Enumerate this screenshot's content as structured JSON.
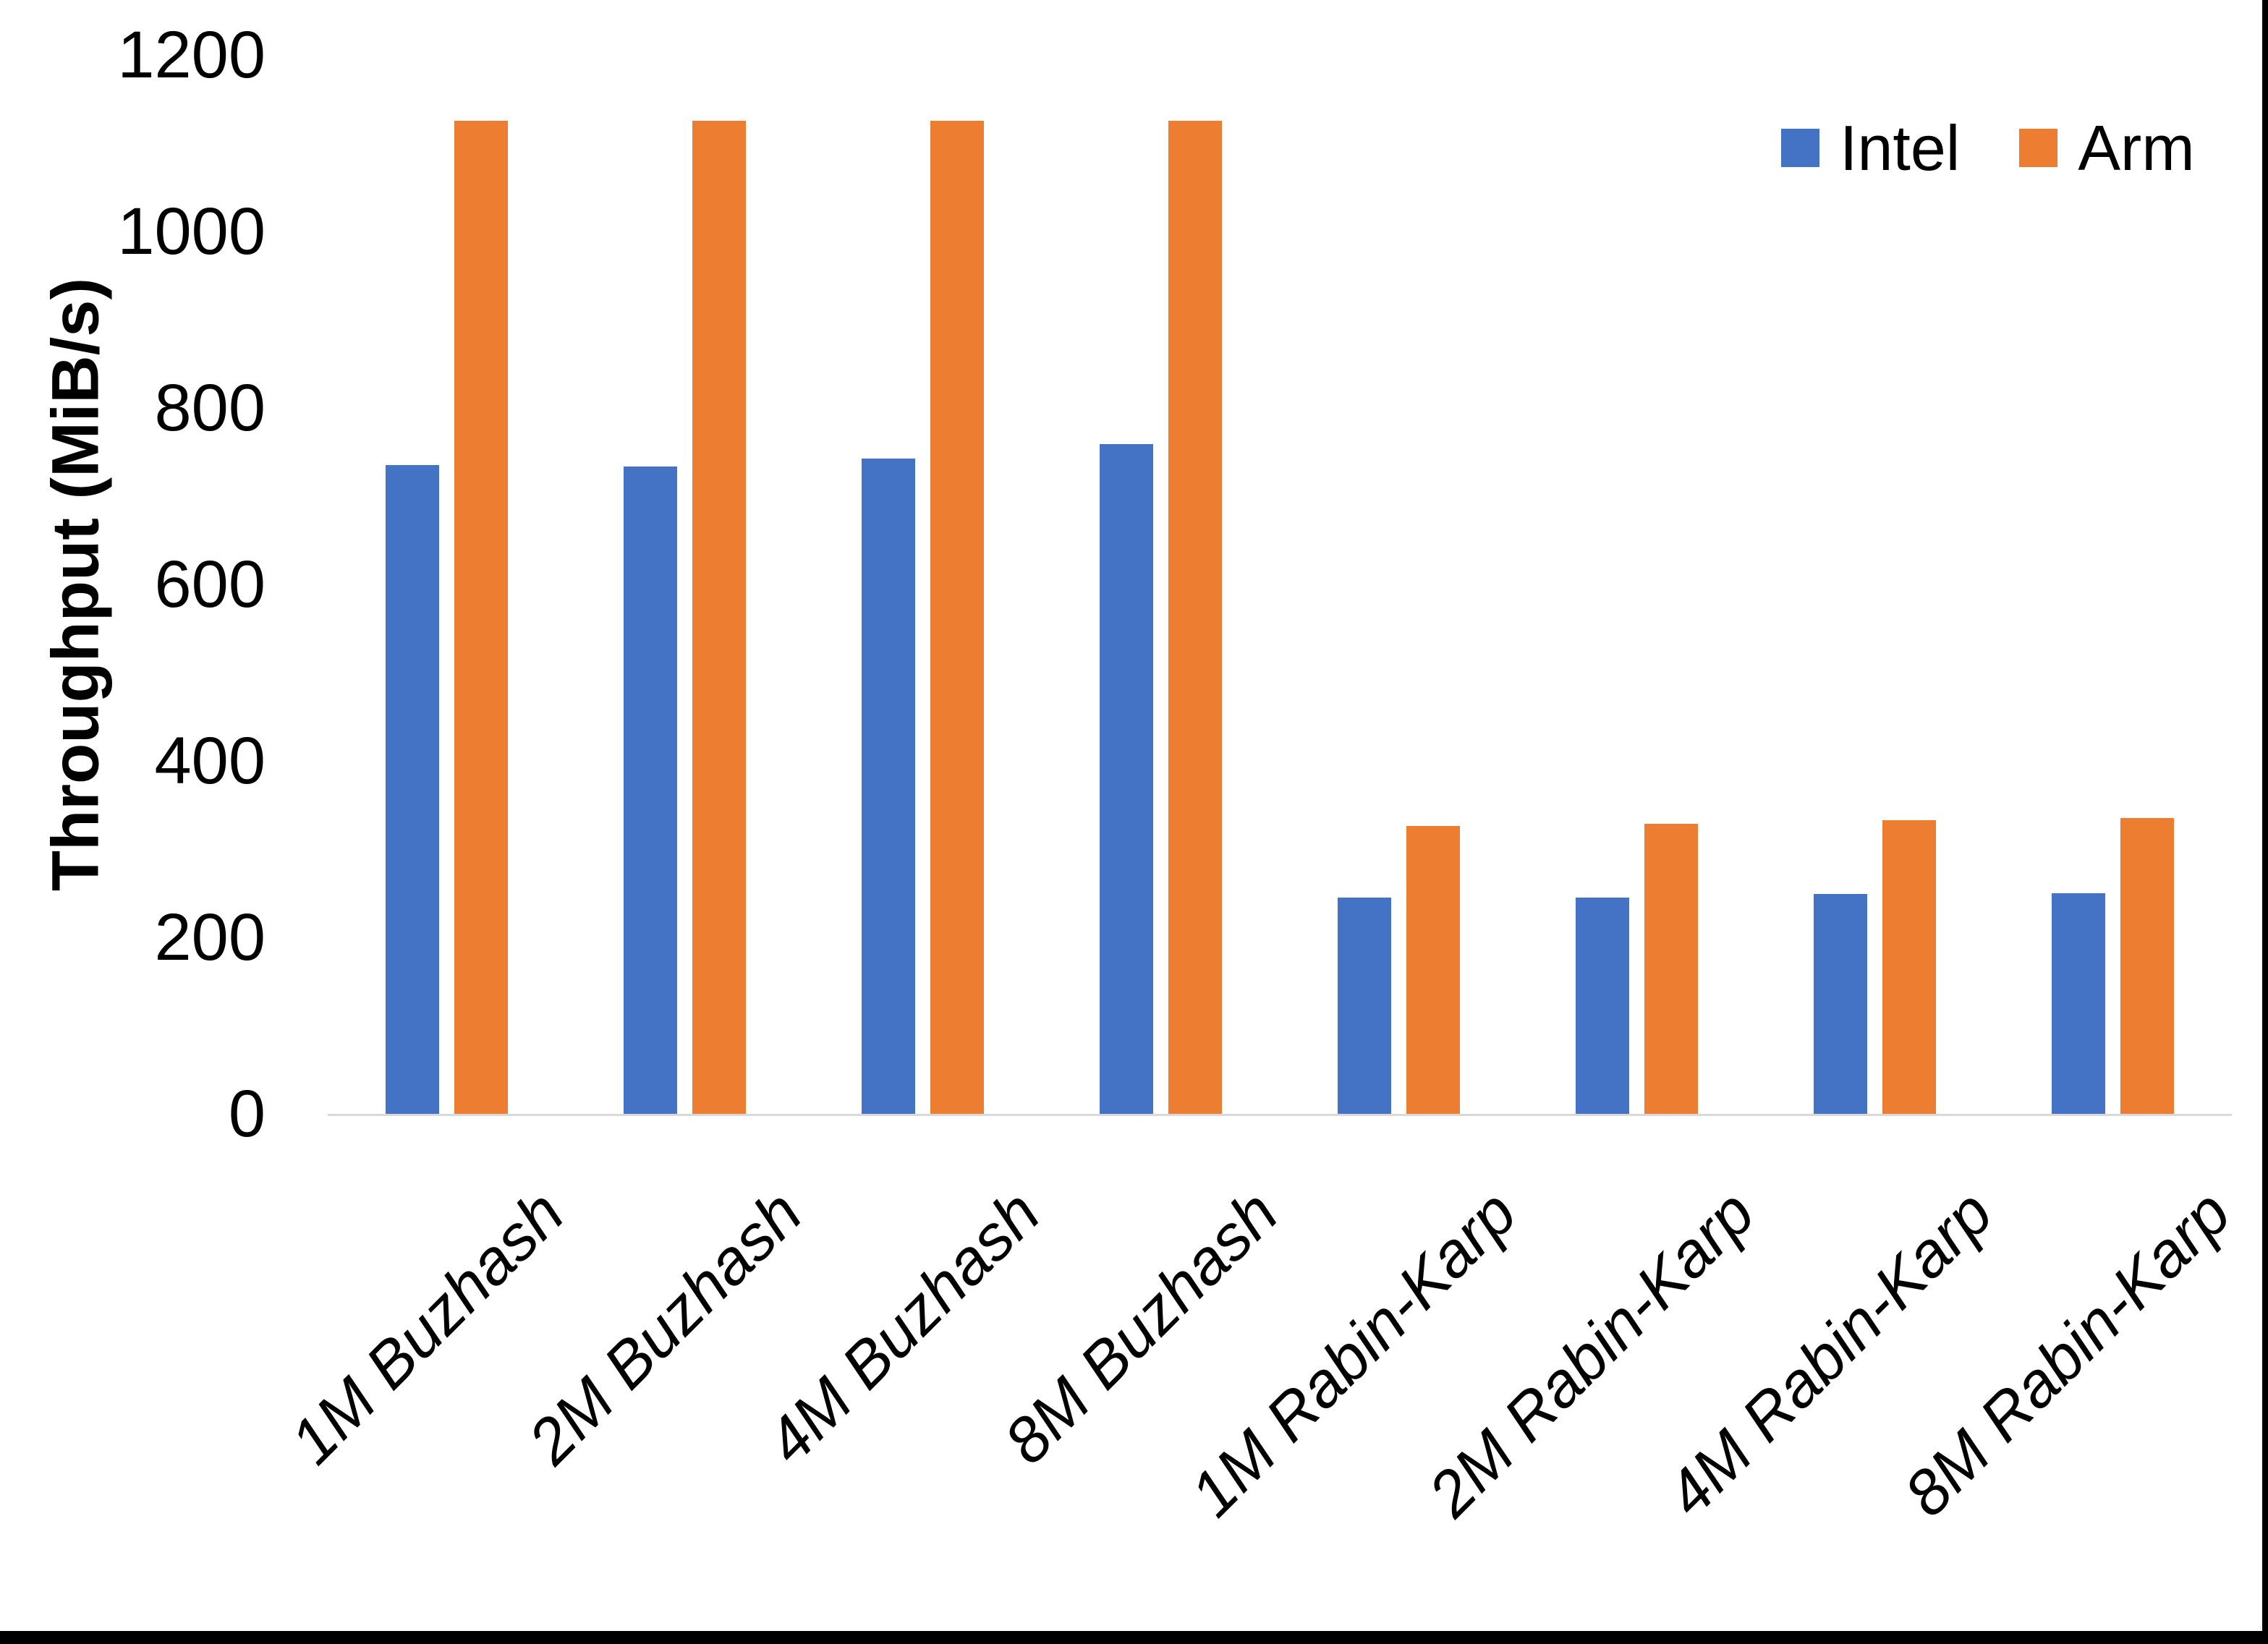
{
  "chart_data": {
    "type": "bar",
    "title": "",
    "categories": [
      "1M Buzhash",
      "2M Buzhash",
      "4M Buzhash",
      "8M Buzhash",
      "1M Rabin-Karp",
      "2M Rabin-Karp",
      "4M Rabin-Karp",
      "8M Rabin-Karp"
    ],
    "series": [
      {
        "name": "Intel",
        "color": "#4472C4",
        "values": [
          735,
          734,
          743,
          759,
          245,
          245,
          249,
          250
        ]
      },
      {
        "name": "Arm",
        "color": "#ED7D31",
        "values": [
          1125,
          1125,
          1125,
          1125,
          326,
          329,
          333,
          335
        ]
      }
    ],
    "xlabel": "",
    "ylabel": "Throughput (MiB/s)",
    "ylim": [
      0,
      1200
    ],
    "yticks": [
      0,
      200,
      400,
      600,
      800,
      1000,
      1200
    ],
    "grid": false,
    "legend_position": "top-right",
    "axis_line_color": "#D9D9D9",
    "text_color": "#000000",
    "background_color": "#FFFFFF",
    "category_label_style": "italic, rotated 45deg",
    "frame_edge_color": "#000000"
  }
}
